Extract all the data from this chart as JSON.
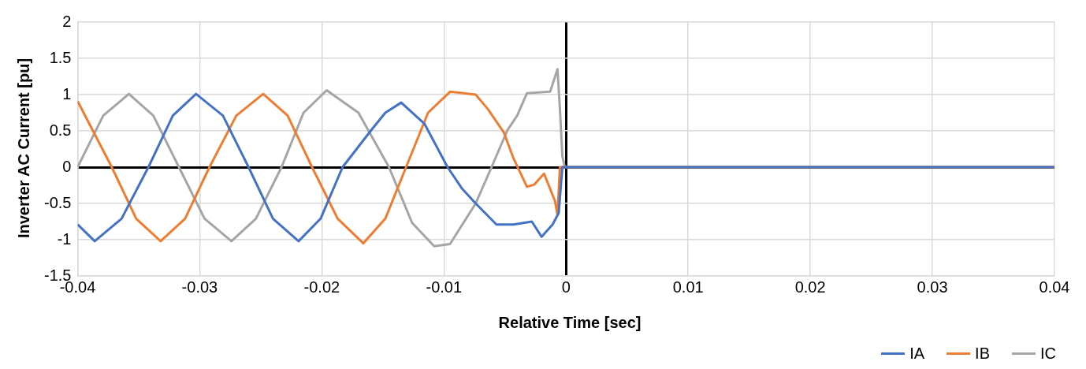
{
  "chart_data": {
    "type": "line",
    "xlabel": "Relative Time [sec]",
    "ylabel": "Inverter AC Current [pu]",
    "xlim": [
      -0.04,
      0.04
    ],
    "xticks": [
      -0.04,
      -0.03,
      -0.02,
      -0.01,
      0,
      0.01,
      0.02,
      0.03,
      0.04
    ],
    "ylim": [
      -1.5,
      2
    ],
    "yticks": [
      -1.5,
      -1,
      -0.5,
      0,
      0.5,
      1,
      1.5,
      2
    ],
    "grid": true,
    "legend": "bottom right",
    "line_style": "solid",
    "series": [
      {
        "name": "IA",
        "color": "#4472c4",
        "x": [
          -0.04,
          -0.0386,
          -0.0364,
          -0.0342,
          -0.0322,
          -0.0303,
          -0.0281,
          -0.026,
          -0.024,
          -0.0219,
          -0.0201,
          -0.0183,
          -0.016,
          -0.0148,
          -0.0135,
          -0.0116,
          -0.0097,
          -0.0085,
          -0.0074,
          -0.0057,
          -0.0043,
          -0.0028,
          -0.002,
          -0.0011,
          -0.0006,
          -0.0003,
          0.04
        ],
        "values": [
          -0.79,
          -1.02,
          -0.71,
          0,
          0.71,
          1.01,
          0.71,
          0,
          -0.71,
          -1.02,
          -0.71,
          0,
          0.5,
          0.75,
          0.89,
          0.6,
          0,
          -0.3,
          -0.5,
          -0.79,
          -0.79,
          -0.75,
          -0.96,
          -0.79,
          -0.63,
          0,
          0
        ]
      },
      {
        "name": "IB",
        "color": "#ed7d31",
        "x": [
          -0.04,
          -0.0372,
          -0.0352,
          -0.0332,
          -0.0312,
          -0.0292,
          -0.027,
          -0.0248,
          -0.0228,
          -0.0208,
          -0.0187,
          -0.0166,
          -0.0148,
          -0.0131,
          -0.0113,
          -0.0095,
          -0.0074,
          -0.0064,
          -0.0051,
          -0.0043,
          -0.0032,
          -0.0026,
          -0.0018,
          -0.0009,
          -0.0007,
          -0.0005,
          0.04
        ],
        "values": [
          0.91,
          0,
          -0.71,
          -1.02,
          -0.71,
          0,
          0.71,
          1.01,
          0.71,
          0,
          -0.71,
          -1.05,
          -0.71,
          0,
          0.75,
          1.04,
          1,
          0.8,
          0.48,
          0.12,
          -0.27,
          -0.24,
          -0.09,
          -0.47,
          -0.66,
          0,
          0
        ]
      },
      {
        "name": "IC",
        "color": "#a5a5a5",
        "x": [
          -0.04,
          -0.0379,
          -0.0358,
          -0.0338,
          -0.0317,
          -0.0296,
          -0.0274,
          -0.0254,
          -0.0233,
          -0.0215,
          -0.0196,
          -0.017,
          -0.0145,
          -0.0126,
          -0.0108,
          -0.0095,
          -0.0074,
          -0.0061,
          -0.0048,
          -0.004,
          -0.0032,
          -0.0013,
          -0.0007,
          -0.0005,
          -0.0003,
          -0.0001,
          0.04
        ],
        "values": [
          0,
          0.71,
          1.01,
          0.71,
          0,
          -0.71,
          -1.02,
          -0.71,
          0,
          0.75,
          1.06,
          0.75,
          0,
          -0.77,
          -1.09,
          -1.06,
          -0.5,
          0,
          0.51,
          0.71,
          1.02,
          1.04,
          1.35,
          0.8,
          0.15,
          0,
          0
        ]
      }
    ]
  }
}
